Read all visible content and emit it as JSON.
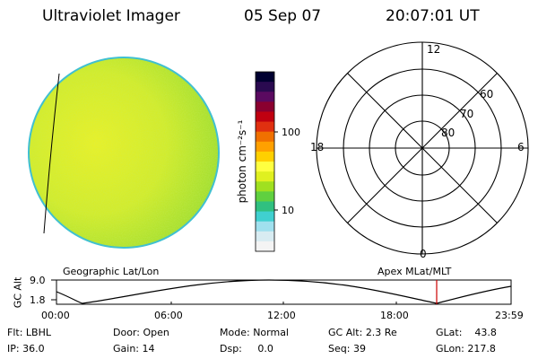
{
  "header": {
    "instrument": "Ultraviolet Imager",
    "date": "05 Sep 07",
    "time": "20:07:01 UT"
  },
  "colorbar": {
    "unit_label": "photon cm⁻²s⁻¹",
    "ticks": [
      "100",
      "10"
    ],
    "colors": [
      "#000030",
      "#2a0a50",
      "#5a0a60",
      "#8a0030",
      "#c00010",
      "#e03010",
      "#f07000",
      "#ffa000",
      "#ffd000",
      "#ffff40",
      "#e0f020",
      "#a0e020",
      "#60d040",
      "#30c080",
      "#40d0d0",
      "#a0e0ee",
      "#d8ecf2",
      "#f4f4f4"
    ]
  },
  "polar_plot": {
    "mlt_labels": [
      "12",
      "18",
      "6",
      "0"
    ],
    "lat_labels": [
      "60",
      "70",
      "80"
    ]
  },
  "altitude_strip": {
    "left_title": "Geographic Lat/Lon",
    "right_title": "Apex MLat/MLT",
    "ylabel": "GC Alt",
    "y_ticks": [
      "9.0",
      "1.8"
    ],
    "x_ticks": [
      "00:00",
      "06:00",
      "12:00",
      "18:00",
      "23:59"
    ],
    "current_marker_color": "#cc0000"
  },
  "status": {
    "flt_label": "Flt:",
    "flt_value": "LBHL",
    "ip_label": "IP:",
    "ip_value": "36.0",
    "door_label": "Door:",
    "door_value": "Open",
    "gain_label": "Gain:",
    "gain_value": "14",
    "mode_label": "Mode:",
    "mode_value": "Normal",
    "dsp_label": "Dsp:",
    "dsp_value": "0.0",
    "gcalt_label": "GC Alt:",
    "gcalt_value": "2.3 Re",
    "seq_label": "Seq:",
    "seq_value": "39",
    "glat_label": "GLat:",
    "glat_value": "43.8",
    "glon_label": "GLon:",
    "glon_value": "217.8"
  }
}
